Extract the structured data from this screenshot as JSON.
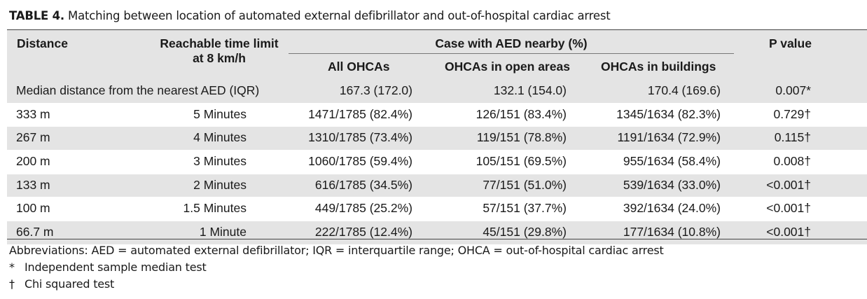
{
  "caption": {
    "label": "TABLE 4.",
    "text": "Matching between location of automated external defibrillator and out-of-hospital cardiac arrest"
  },
  "header": {
    "distance": "Distance",
    "reachable_line1": "Reachable time limit",
    "reachable_line2": "at 8 km/h",
    "case_group": "Case with AED nearby (%)",
    "all": "All OHCAs",
    "open": "OHCAs in open areas",
    "buildings": "OHCAs in buildings",
    "p": "P value"
  },
  "rows": [
    {
      "distance": "Median distance from the nearest AED (IQR)",
      "time": "",
      "all": "167.3 (172.0)",
      "open": "132.1 (154.0)",
      "buildings": "170.4 (169.6)",
      "p": "0.007*"
    },
    {
      "distance": "333 m",
      "time": "5 Minutes",
      "all": "1471/1785 (82.4%)",
      "open": "126/151 (83.4%)",
      "buildings": "1345/1634 (82.3%)",
      "p": "0.729†"
    },
    {
      "distance": "267 m",
      "time": "4 Minutes",
      "all": "1310/1785 (73.4%)",
      "open": "119/151 (78.8%)",
      "buildings": "1191/1634 (72.9%)",
      "p": "0.115†"
    },
    {
      "distance": "200 m",
      "time": "3 Minutes",
      "all": "1060/1785 (59.4%)",
      "open": "105/151 (69.5%)",
      "buildings": "955/1634 (58.4%)",
      "p": "0.008†"
    },
    {
      "distance": "133 m",
      "time": "2 Minutes",
      "all": "616/1785 (34.5%)",
      "open": "77/151 (51.0%)",
      "buildings": "539/1634 (33.0%)",
      "p": "<0.001†"
    },
    {
      "distance": "100 m",
      "time": "1.5 Minutes",
      "all": "449/1785 (25.2%)",
      "open": "57/151 (37.7%)",
      "buildings": "392/1634 (24.0%)",
      "p": "<0.001†"
    },
    {
      "distance": "66.7 m",
      "time": "1 Minute",
      "all": "222/1785 (12.4%)",
      "open": "45/151 (29.8%)",
      "buildings": "177/1634 (10.8%)",
      "p": "<0.001†"
    }
  ],
  "notes": {
    "abbreviations": "Abbreviations: AED = automated external defibrillator; IQR = interquartile range; OHCA = out-of-hospital cardiac arrest",
    "star_mark": "*",
    "star_text": "Independent sample median test",
    "dagger_mark": "†",
    "dagger_text": "Chi squared test"
  }
}
